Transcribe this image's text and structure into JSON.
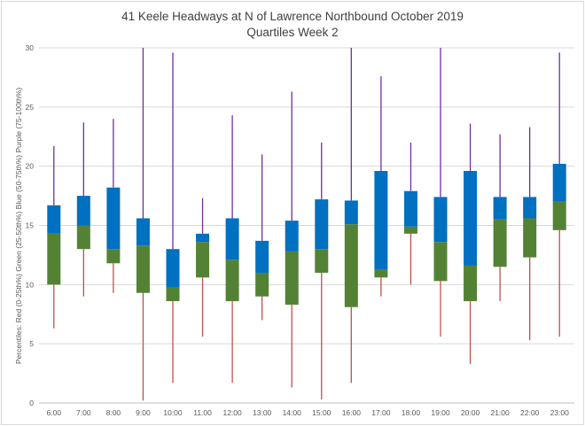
{
  "chart_data": {
    "type": "box",
    "title": "41 Keele Headways at N of Lawrence Northbound October 2019",
    "subtitle": "Quartiles Week 2",
    "ylabel": "Percentiles: Red (0-25th%) Green (25-50th%) Blue (50-75th%) Purple (75-100th%)",
    "xlabel": "",
    "ylim": [
      0,
      30
    ],
    "yticks": [
      0,
      5,
      10,
      15,
      20,
      25,
      30
    ],
    "grid": true,
    "colors": {
      "min_to_q1": "#c0504d",
      "q1_to_median": "#548235",
      "median_to_q3": "#0070c0",
      "q3_to_max": "#7030a0"
    },
    "categories": [
      "6:00",
      "7:00",
      "8:00",
      "9:00",
      "10:00",
      "11:00",
      "12:00",
      "13:00",
      "14:00",
      "15:00",
      "16:00",
      "17:00",
      "18:00",
      "19:00",
      "20:00",
      "21:00",
      "22:00",
      "23:00"
    ],
    "min": [
      6.3,
      9.0,
      9.3,
      0.2,
      1.7,
      5.6,
      1.7,
      7.0,
      1.3,
      0.3,
      1.7,
      9.0,
      10.0,
      5.6,
      3.3,
      8.6,
      5.3,
      5.6
    ],
    "q1": [
      10.0,
      13.0,
      11.8,
      9.3,
      8.6,
      10.6,
      8.6,
      9.0,
      8.3,
      11.0,
      8.1,
      10.6,
      14.3,
      10.3,
      8.6,
      11.5,
      12.3,
      14.6
    ],
    "median": [
      14.3,
      15.0,
      13.0,
      13.3,
      9.8,
      13.6,
      12.1,
      11.0,
      12.8,
      13.0,
      15.1,
      11.3,
      14.9,
      13.6,
      11.6,
      15.5,
      15.6,
      17.0
    ],
    "q3": [
      16.7,
      17.5,
      18.2,
      15.6,
      13.0,
      14.3,
      15.6,
      13.7,
      15.4,
      17.2,
      17.1,
      19.6,
      17.9,
      17.4,
      19.6,
      17.4,
      17.4,
      20.2
    ],
    "max": [
      21.7,
      23.7,
      24.0,
      30.0,
      29.6,
      17.3,
      24.3,
      21.0,
      26.3,
      22.0,
      30.0,
      27.6,
      22.0,
      30.0,
      23.6,
      22.7,
      23.3,
      29.6
    ]
  }
}
